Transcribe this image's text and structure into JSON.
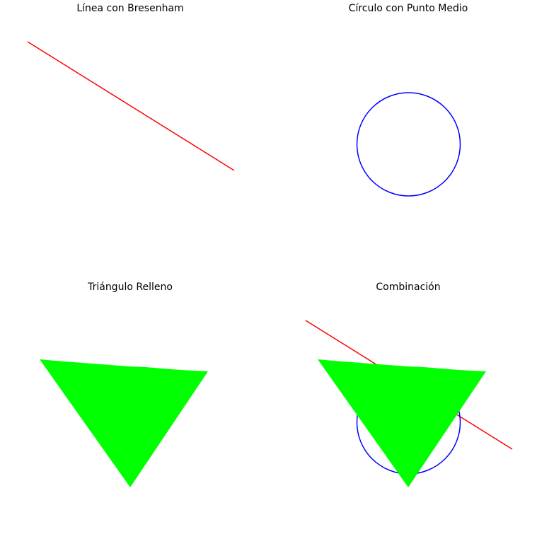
{
  "panels": [
    {
      "id": "line",
      "title": "Línea con Bresenham"
    },
    {
      "id": "circle",
      "title": "Círculo con Punto Medio"
    },
    {
      "id": "triangle",
      "title": "Triángulo Relleno"
    },
    {
      "id": "combo",
      "title": "Combinación"
    }
  ],
  "colors": {
    "line": "#ff0000",
    "circle": "#0000ff",
    "triangle": "#00ff00",
    "background": "#ffffff"
  }
}
